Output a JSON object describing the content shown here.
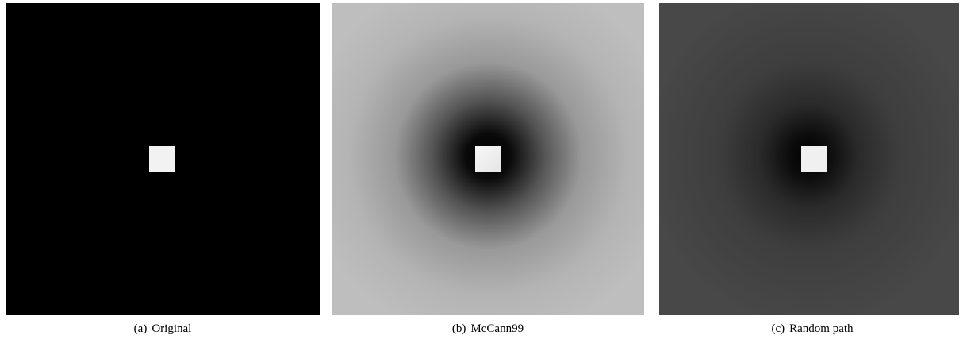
{
  "figure": {
    "panels": [
      {
        "label": "(a)",
        "caption": "Original"
      },
      {
        "label": "(b)",
        "caption": "McCann99"
      },
      {
        "label": "(c)",
        "caption": "Random path"
      }
    ]
  }
}
